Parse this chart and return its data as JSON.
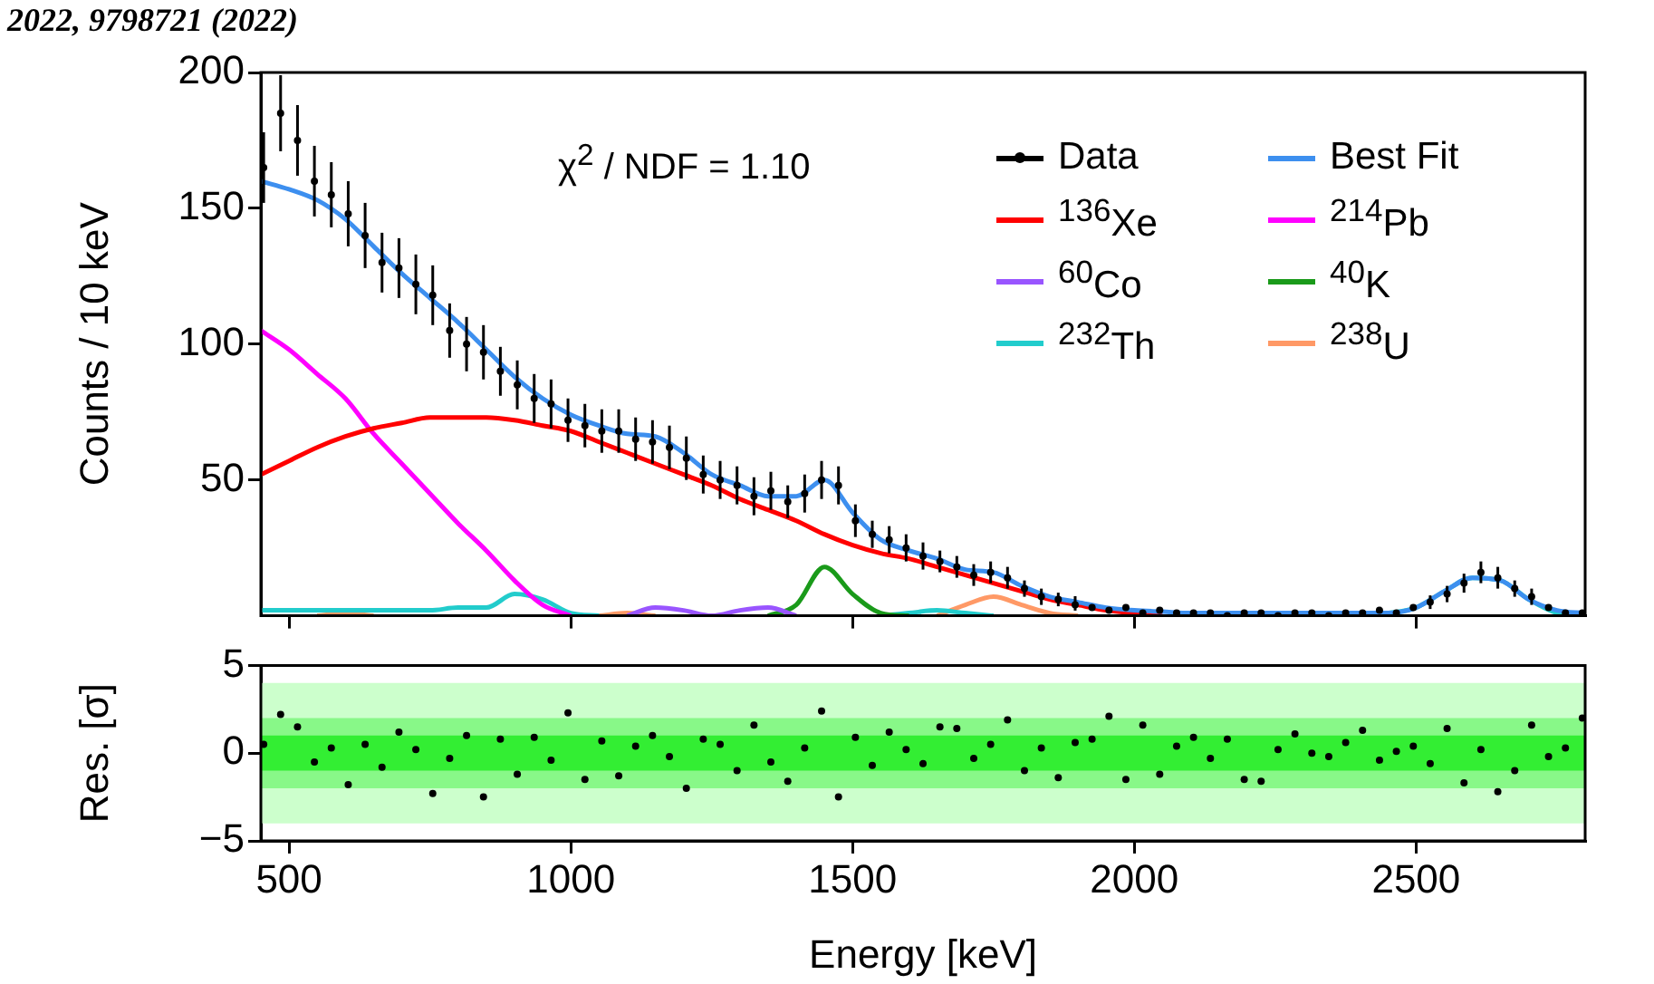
{
  "chart_data": [
    {
      "type": "line",
      "ylabel": "Counts / 10 keV",
      "annotations": [
        "2022, 9798721 (2022)",
        "χ$^{2}$ / NDF = 1.10"
      ],
      "legend": "top right",
      "tick_labels": "y",
      "xlim": [
        450,
        2800
      ],
      "xticks": [
        500,
        1000,
        1500,
        2000,
        2500
      ],
      "ylim": [
        0,
        200
      ],
      "yticks": [
        50,
        100,
        150,
        200
      ],
      "x": [
        450,
        500,
        550,
        600,
        650,
        700,
        750,
        800,
        850,
        900,
        950,
        1000,
        1050,
        1100,
        1150,
        1200,
        1250,
        1300,
        1350,
        1400,
        1450,
        1500,
        1550,
        1600,
        1650,
        1700,
        1750,
        1800,
        1850,
        1900,
        1950,
        2000,
        2050,
        2100,
        2150,
        2200,
        2250,
        2300,
        2350,
        2400,
        2450,
        2500,
        2550,
        2600,
        2650,
        2700,
        2750,
        2800
      ],
      "series": [
        {
          "name": "Data",
          "type": "scatter",
          "marker": "circle",
          "color": "#000000",
          "x": [
            455,
            485,
            515,
            545,
            575,
            605,
            635,
            665,
            695,
            725,
            755,
            785,
            815,
            845,
            875,
            905,
            935,
            965,
            995,
            1025,
            1055,
            1085,
            1115,
            1145,
            1175,
            1205,
            1235,
            1265,
            1295,
            1325,
            1355,
            1385,
            1415,
            1445,
            1475,
            1505,
            1535,
            1565,
            1595,
            1625,
            1655,
            1685,
            1715,
            1745,
            1775,
            1805,
            1835,
            1865,
            1895,
            1925,
            1955,
            1985,
            2015,
            2045,
            2075,
            2105,
            2135,
            2165,
            2195,
            2225,
            2255,
            2285,
            2315,
            2345,
            2375,
            2405,
            2435,
            2465,
            2495,
            2525,
            2555,
            2585,
            2615,
            2645,
            2675,
            2705,
            2735,
            2765,
            2795
          ],
          "values": [
            165,
            185,
            175,
            160,
            155,
            148,
            140,
            130,
            128,
            122,
            118,
            105,
            100,
            97,
            90,
            85,
            80,
            78,
            72,
            70,
            68,
            68,
            65,
            64,
            62,
            58,
            52,
            50,
            48,
            44,
            46,
            42,
            45,
            50,
            48,
            35,
            30,
            28,
            25,
            22,
            20,
            18,
            15,
            16,
            14,
            10,
            7,
            6,
            4,
            3,
            2,
            3,
            1,
            2,
            1,
            1,
            1,
            0,
            1,
            1,
            0,
            1,
            1,
            0,
            1,
            1,
            2,
            1,
            3,
            5,
            8,
            12,
            16,
            14,
            10,
            7,
            3,
            1,
            1
          ],
          "errors": [
            13,
            14,
            13,
            13,
            12,
            12,
            12,
            11,
            11,
            11,
            11,
            10,
            10,
            10,
            9,
            9,
            9,
            9,
            8,
            8,
            8,
            8,
            8,
            8,
            8,
            8,
            7,
            7,
            7,
            7,
            7,
            6,
            7,
            7,
            7,
            6,
            5,
            5,
            5,
            5,
            4,
            4,
            4,
            4,
            4,
            3,
            3,
            2.5,
            [
              1.9,
              7.2
            ],
            null,
            null,
            null,
            null,
            null,
            null,
            null,
            null,
            null,
            null,
            null,
            null,
            null,
            null,
            null,
            null,
            null,
            null,
            null,
            null,
            2.5,
            3,
            3.5,
            4,
            4,
            3,
            3,
            null,
            null,
            null
          ]
        },
        {
          "name": "Best Fit",
          "marker": "none",
          "color": "#3d8fef",
          "values": [
            160,
            157,
            153,
            146,
            136,
            126,
            117,
            108,
            98,
            88,
            80,
            74,
            70,
            67,
            66,
            60,
            52,
            48,
            44,
            44,
            50,
            38,
            28,
            24,
            21,
            17,
            16,
            11,
            7,
            5,
            3,
            2,
            1.5,
            1,
            1,
            1,
            1,
            1,
            1,
            1,
            1,
            3,
            9,
            14,
            13,
            6,
            2,
            1
          ]
        },
        {
          "name": "$^{136}$Xe",
          "marker": "none",
          "color": "#ff0000",
          "values": [
            52,
            57,
            62,
            66,
            69,
            71,
            73,
            73,
            73,
            72,
            70,
            68,
            64,
            60,
            56,
            52,
            48,
            43,
            39,
            35,
            30,
            26,
            23,
            21,
            18,
            15,
            12,
            9,
            6,
            4,
            2,
            1,
            0.3,
            null,
            null,
            null,
            null,
            null,
            null,
            null,
            null,
            null,
            null,
            null,
            null,
            null,
            null,
            null
          ]
        },
        {
          "name": "$^{214}$Pb",
          "marker": "none",
          "color": "#ff00ff",
          "values": [
            105,
            98,
            89,
            80,
            67,
            56,
            45,
            34,
            24,
            13,
            4,
            0,
            null,
            null,
            null,
            null,
            null,
            null,
            null,
            null,
            null,
            null,
            null,
            null,
            null,
            null,
            null,
            null,
            null,
            null,
            null,
            null,
            null,
            null,
            null,
            null,
            null,
            null,
            null,
            null,
            null,
            null,
            null,
            null,
            null,
            null,
            null,
            null
          ]
        },
        {
          "name": "$^{60}$Co",
          "marker": "none",
          "color": "#9955ff",
          "values": [
            null,
            null,
            null,
            null,
            null,
            null,
            null,
            null,
            null,
            null,
            null,
            null,
            null,
            0,
            3,
            2,
            0,
            2,
            3,
            0,
            null,
            null,
            null,
            null,
            null,
            null,
            null,
            null,
            null,
            null,
            null,
            null,
            null,
            null,
            null,
            null,
            null,
            null,
            null,
            null,
            null,
            null,
            null,
            null,
            null,
            null,
            null,
            null
          ]
        },
        {
          "name": "$^{40}$K",
          "marker": "none",
          "color": "#1a9a1a",
          "values": [
            null,
            null,
            null,
            null,
            null,
            null,
            null,
            null,
            null,
            null,
            null,
            null,
            null,
            null,
            null,
            null,
            null,
            null,
            0,
            4,
            18,
            8,
            1,
            0,
            null,
            null,
            null,
            null,
            null,
            null,
            null,
            null,
            null,
            null,
            null,
            null,
            null,
            null,
            null,
            null,
            null,
            null,
            null,
            null,
            null,
            null,
            null,
            null
          ]
        },
        {
          "name": "$^{232}$Th",
          "marker": "none",
          "color": "#22cccc",
          "values": [
            2,
            2,
            2,
            2,
            2,
            2,
            2,
            3,
            3,
            8,
            6,
            1,
            0,
            null,
            null,
            null,
            null,
            null,
            null,
            null,
            null,
            null,
            0,
            1,
            2,
            1,
            0,
            null,
            null,
            null,
            null,
            null,
            null,
            null,
            null,
            null,
            null,
            null,
            null,
            0,
            1,
            3,
            9,
            14,
            13,
            6,
            1,
            0
          ]
        },
        {
          "name": "$^{238}$U",
          "marker": "none",
          "color": "#ff9966",
          "values": [
            null,
            null,
            0,
            1,
            0,
            null,
            null,
            null,
            null,
            null,
            null,
            null,
            0,
            1,
            0,
            null,
            null,
            null,
            null,
            null,
            null,
            null,
            null,
            null,
            0,
            4,
            7,
            4,
            1,
            0,
            null,
            null,
            null,
            null,
            null,
            null,
            null,
            null,
            null,
            null,
            null,
            null,
            null,
            null,
            null,
            null,
            null,
            null
          ]
        }
      ]
    },
    {
      "type": "scatter",
      "marker": "circle",
      "color": "#000000",
      "xlabel": "Energy [keV]",
      "ylabel": "Res. [σ]",
      "xlim": [
        450,
        2800
      ],
      "xticks": [
        500,
        1000,
        1500,
        2000,
        2500
      ],
      "ylim": [
        -5,
        5
      ],
      "yticks": [
        {
          "value": -5,
          "label": "−5"
        },
        0,
        5
      ],
      "bands": [
        {
          "axis": "y",
          "from": -4,
          "to": 4,
          "color": "#ccffcc"
        },
        {
          "axis": "y",
          "from": -2,
          "to": 2,
          "color": "#88f888"
        },
        {
          "axis": "y",
          "from": -1,
          "to": 1,
          "color": "#33ee33"
        }
      ],
      "x": [
        455,
        485,
        515,
        545,
        575,
        605,
        635,
        665,
        695,
        725,
        755,
        785,
        815,
        845,
        875,
        905,
        935,
        965,
        995,
        1025,
        1055,
        1085,
        1115,
        1145,
        1175,
        1205,
        1235,
        1265,
        1295,
        1325,
        1355,
        1385,
        1415,
        1445,
        1475,
        1505,
        1535,
        1565,
        1595,
        1625,
        1655,
        1685,
        1715,
        1745,
        1775,
        1805,
        1835,
        1865,
        1895,
        1925,
        1955,
        1985,
        2015,
        2045,
        2075,
        2105,
        2135,
        2165,
        2195,
        2225,
        2255,
        2285,
        2315,
        2345,
        2375,
        2405,
        2435,
        2465,
        2495,
        2525,
        2555,
        2585,
        2615,
        2645,
        2675,
        2705,
        2735,
        2765,
        2795
      ],
      "values": [
        0.5,
        2.2,
        1.5,
        -0.5,
        0.3,
        -1.8,
        0.5,
        -0.8,
        1.2,
        0.2,
        -2.3,
        -0.3,
        1.0,
        -2.5,
        0.8,
        -1.2,
        0.9,
        -0.4,
        2.3,
        -1.5,
        0.7,
        -1.3,
        0.4,
        1.0,
        -0.2,
        -2.0,
        0.8,
        0.5,
        -1.0,
        1.6,
        -0.5,
        -1.6,
        0.3,
        2.4,
        -2.5,
        0.9,
        -0.7,
        1.2,
        0.2,
        -0.6,
        1.5,
        1.4,
        -0.3,
        0.5,
        1.9,
        -1.0,
        0.3,
        -1.4,
        0.6,
        0.8,
        2.1,
        -1.5,
        1.6,
        -1.2,
        0.4,
        0.9,
        -0.3,
        0.8,
        -1.5,
        -1.6,
        0.2,
        1.1,
        0.0,
        -0.2,
        0.6,
        1.3,
        -0.4,
        0.1,
        0.4,
        -0.6,
        1.4,
        -1.7,
        0.2,
        -2.2,
        -1.0,
        1.6,
        -0.2,
        0.3,
        2.0
      ]
    }
  ]
}
